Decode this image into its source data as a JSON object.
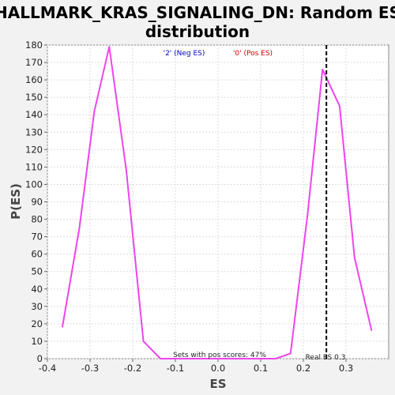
{
  "chart_data": {
    "type": "line",
    "title_line1": "HALLMARK_KRAS_SIGNALING_DN: Random ES",
    "title_line2": "distribution",
    "xlabel": "ES",
    "ylabel": "P(ES)",
    "xlim": [
      -0.4,
      0.4
    ],
    "ylim": [
      0,
      180
    ],
    "x_ticks": [
      -0.4,
      -0.3,
      -0.2,
      -0.1,
      0.0,
      0.1,
      0.2,
      0.3
    ],
    "x_tick_labels": [
      "-0.4",
      "-0.3",
      "-0.2",
      "-0.1",
      "0.0",
      "0.1",
      "0.2",
      "0.3"
    ],
    "y_ticks": [
      0,
      10,
      20,
      30,
      40,
      50,
      60,
      70,
      80,
      90,
      100,
      110,
      120,
      130,
      140,
      150,
      160,
      170,
      180
    ],
    "y_tick_labels": [
      "0",
      "10",
      "20",
      "30",
      "40",
      "50",
      "60",
      "70",
      "80",
      "90",
      "100",
      "110",
      "120",
      "130",
      "140",
      "150",
      "160",
      "170",
      "180"
    ],
    "grid": true,
    "legend": [
      {
        "label": "'2' (Neg ES)",
        "color": "#0000cc"
      },
      {
        "label": "'0' (Pos ES)",
        "color": "#cc0000"
      }
    ],
    "series": [
      {
        "color": "#ee44ee",
        "x": [
          -0.365,
          -0.325,
          -0.29,
          -0.255,
          -0.215,
          -0.175,
          -0.135,
          -0.1,
          -0.06,
          -0.02,
          0.02,
          0.06,
          0.095,
          0.135,
          0.17,
          0.21,
          0.245,
          0.285,
          0.32,
          0.36
        ],
        "y": [
          18,
          75,
          142,
          179,
          108,
          10,
          0,
          0,
          0,
          0,
          0,
          0,
          0,
          0,
          3,
          83,
          166,
          145,
          58,
          16
        ]
      }
    ],
    "real_es": 0.254,
    "annotations": {
      "sets_with_pos": "Sets with pos scores: 47%",
      "real_es": "Real ES 0.3"
    }
  }
}
